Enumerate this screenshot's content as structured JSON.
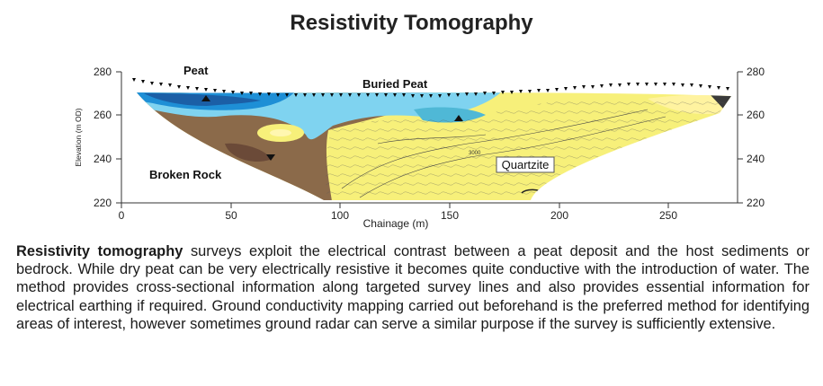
{
  "title": "Resistivity Tomography",
  "figure": {
    "ylabel": "Elevation (m OD)",
    "xlabel": "Chainage (m)",
    "xticks": [
      "0",
      "50",
      "100",
      "150",
      "200",
      "250"
    ],
    "yticks": [
      "280",
      "260",
      "240",
      "220"
    ],
    "labels": {
      "peat": "Peat",
      "buried_peat": "Buried Peat",
      "broken_rock": "Broken Rock",
      "quartzite": "Quartzite",
      "contour": "3000"
    },
    "colors": {
      "blue": "#1e8fd6",
      "cyan": "#7fd3f0",
      "brown": "#8b6a4a",
      "yellow": "#f7f07a"
    }
  },
  "description": {
    "lead": "Resistivity tomography",
    "body": " surveys exploit the electrical contrast between a peat deposit and the host sediments or bedrock. While dry peat can be very electrically resistive it becomes quite conductive with the introduction of water. The method provides cross-sectional information along targeted survey lines and also provides essential information for electrical earthing if required. Ground conductivity mapping carried out beforehand is the preferred method for identifying areas of interest, however sometimes ground radar can serve a similar purpose if the survey is sufficiently extensive."
  }
}
